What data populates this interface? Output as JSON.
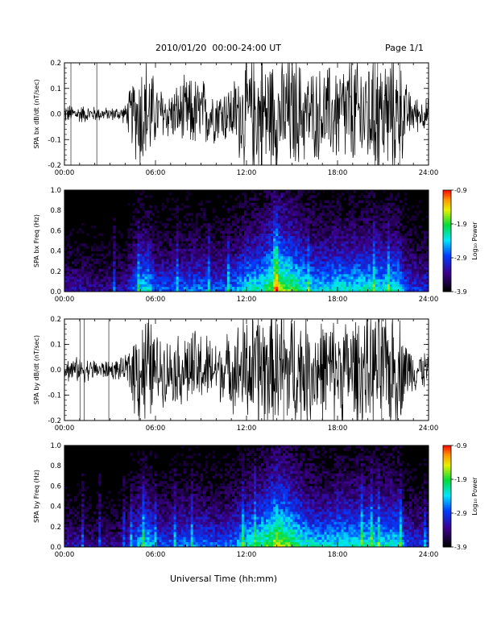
{
  "header": {
    "title": "2010/01/20  00:00-24:00 UT",
    "page": "Page 1/1"
  },
  "xlabel": "Universal Time (hh:mm)",
  "chart_data": [
    {
      "type": "line",
      "ylabel": "SPA bx dB/dt (nT/sec)",
      "xlim": [
        0,
        24
      ],
      "ylim": [
        -0.2,
        0.2
      ],
      "xticks": [
        "00:00",
        "06:00",
        "12:00",
        "18:00",
        "24:00"
      ],
      "yticks": [
        "-0.2",
        "-0.1",
        "0.0",
        "0.1",
        "0.2"
      ],
      "series": [
        {
          "x": [
            0,
            1,
            2,
            3,
            4,
            5,
            5.5,
            6,
            7,
            8,
            9,
            10,
            11,
            12,
            13,
            14,
            15,
            16,
            17,
            18,
            19,
            20,
            21,
            22,
            22.5,
            23,
            24
          ],
          "amplitude": [
            0.03,
            0.03,
            0.025,
            0.02,
            0.03,
            0.2,
            0.2,
            0.1,
            0.08,
            0.12,
            0.12,
            0.09,
            0.1,
            0.2,
            0.2,
            0.2,
            0.2,
            0.15,
            0.15,
            0.17,
            0.2,
            0.2,
            0.2,
            0.2,
            0.1,
            0.06,
            0.05
          ]
        }
      ]
    },
    {
      "type": "heatmap",
      "ylabel": "SPA bx Freq (Hz)",
      "xlim": [
        0,
        24
      ],
      "ylim": [
        0,
        1.0
      ],
      "xticks": [
        "00:00",
        "06:00",
        "12:00",
        "18:00",
        "24:00"
      ],
      "yticks": [
        "0.0",
        "0.2",
        "0.4",
        "0.6",
        "0.8",
        "1.0"
      ],
      "colorbar": {
        "label": "Log₁₀ Power",
        "ticks": [
          "-0.9",
          "-1.9",
          "-2.9",
          "-3.9"
        ],
        "range": [
          -3.9,
          -0.9
        ]
      },
      "activity_profile": {
        "x": [
          0,
          1,
          2,
          3,
          4,
          5,
          5.5,
          6,
          7,
          8,
          9,
          10,
          11,
          12,
          13,
          14,
          15,
          16,
          17,
          18,
          19,
          20,
          21,
          22,
          22.5,
          23,
          24
        ],
        "level": [
          0.35,
          0.35,
          0.3,
          0.3,
          0.35,
          0.65,
          0.7,
          0.5,
          0.5,
          0.55,
          0.55,
          0.5,
          0.55,
          0.7,
          0.75,
          0.95,
          0.85,
          0.7,
          0.65,
          0.7,
          0.7,
          0.72,
          0.7,
          0.7,
          0.5,
          0.45,
          0.45
        ]
      }
    },
    {
      "type": "line",
      "ylabel": "SPA by dB/dt (nT/sec)",
      "xlim": [
        0,
        24
      ],
      "ylim": [
        -0.2,
        0.2
      ],
      "xticks": [
        "00:00",
        "06:00",
        "12:00",
        "18:00",
        "24:00"
      ],
      "yticks": [
        "-0.2",
        "-0.1",
        "0.0",
        "0.1",
        "0.2"
      ],
      "series": [
        {
          "x": [
            0,
            1,
            2,
            3,
            4,
            5,
            5.5,
            6,
            7,
            8,
            9,
            10,
            11,
            12,
            13,
            14,
            15,
            16,
            17,
            18,
            19,
            20,
            21,
            22,
            22.5,
            23,
            24
          ],
          "amplitude": [
            0.04,
            0.04,
            0.035,
            0.03,
            0.04,
            0.2,
            0.2,
            0.12,
            0.1,
            0.13,
            0.13,
            0.1,
            0.12,
            0.2,
            0.2,
            0.2,
            0.2,
            0.18,
            0.17,
            0.17,
            0.18,
            0.2,
            0.2,
            0.2,
            0.1,
            0.07,
            0.06
          ]
        }
      ]
    },
    {
      "type": "heatmap",
      "ylabel": "SPA by Freq (Hz)",
      "xlim": [
        0,
        24
      ],
      "ylim": [
        0,
        1.0
      ],
      "xticks": [
        "00:00",
        "06:00",
        "12:00",
        "18:00",
        "24:00"
      ],
      "yticks": [
        "0.0",
        "0.2",
        "0.4",
        "0.6",
        "0.8",
        "1.0"
      ],
      "colorbar": {
        "label": "Log₁₀ Power",
        "ticks": [
          "-0.9",
          "-1.9",
          "-2.9",
          "-3.9"
        ],
        "range": [
          -3.9,
          -0.9
        ]
      },
      "activity_profile": {
        "x": [
          0,
          1,
          2,
          3,
          4,
          5,
          5.5,
          6,
          7,
          8,
          9,
          10,
          11,
          12,
          13,
          14,
          15,
          16,
          17,
          18,
          19,
          20,
          21,
          22,
          22.5,
          23,
          24
        ],
        "level": [
          0.35,
          0.35,
          0.3,
          0.3,
          0.35,
          0.65,
          0.7,
          0.5,
          0.5,
          0.55,
          0.55,
          0.5,
          0.55,
          0.7,
          0.78,
          0.95,
          0.85,
          0.7,
          0.65,
          0.7,
          0.7,
          0.72,
          0.7,
          0.7,
          0.5,
          0.45,
          0.45
        ]
      }
    }
  ]
}
